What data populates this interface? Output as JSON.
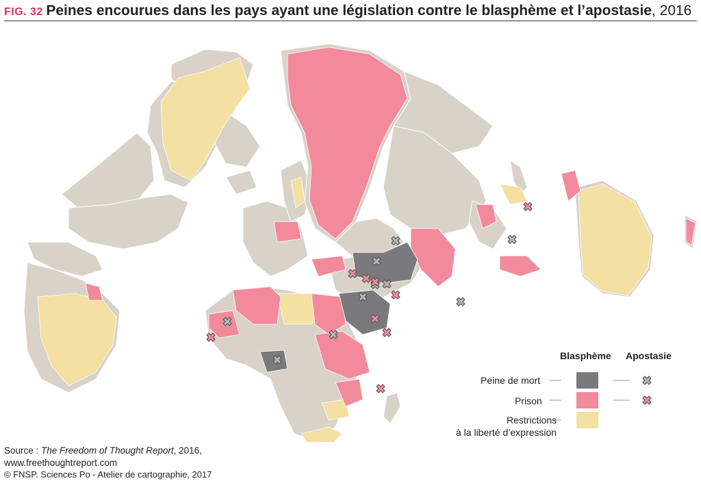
{
  "header": {
    "fig_number": "FIG. 32",
    "title": "Peines encourues dans les pays ayant une législation contre le blasphème et l’apostasie",
    "year": ", 2016"
  },
  "colors": {
    "land": "#d8d2c9",
    "border": "#ffffff",
    "death_penalty": "#7a7a7d",
    "prison": "#f28a9c",
    "restrictions": "#f3e0a2",
    "cross_death_fill": "#b5b5b5",
    "cross_prison_fill": "#f28a9c",
    "cross_stroke": "#555555"
  },
  "legend": {
    "col_blasphemy": "Blasphème",
    "col_apostasy": "Apostasie",
    "row_death": "Peine de mort",
    "row_prison": "Prison",
    "row_restrictions_1": "Restrictions",
    "row_restrictions_2": "à la liberté d’expression"
  },
  "source": {
    "prefix": "Source : ",
    "title": "The Freedom of Thought Report",
    "suffix": ", 2016,",
    "url": "www.freethoughtreport.com"
  },
  "credit": "© FNSP. Sciences Po - Atelier de cartographie, 2017"
}
